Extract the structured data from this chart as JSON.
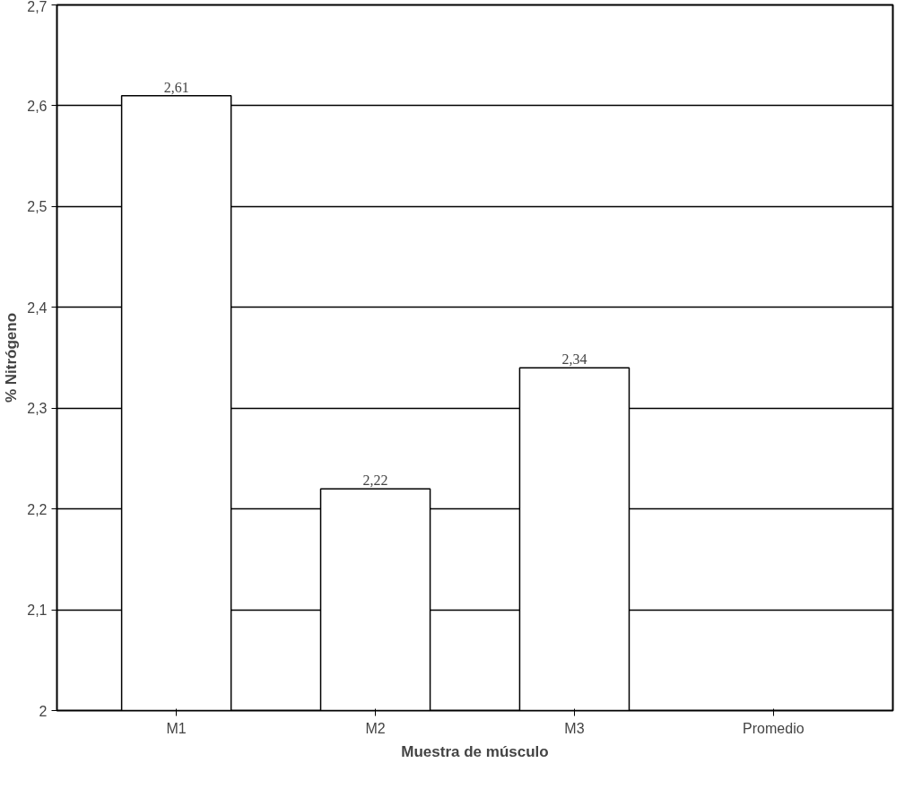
{
  "chart_data": {
    "type": "bar",
    "xlabel": "Muestra de músculo",
    "ylabel": "% Nitrógeno",
    "categories": [
      "M1",
      "M2",
      "M3",
      "Promedio"
    ],
    "values": [
      2.61,
      2.22,
      2.34,
      null
    ],
    "value_labels": [
      "2,61",
      "2,22",
      "2,34",
      null
    ],
    "color": "#ffffff",
    "ylim": [
      2,
      2.7
    ],
    "yticks": [
      {
        "value": 2,
        "label": "2"
      },
      {
        "value": 2.1,
        "label": "2,1"
      },
      {
        "value": 2.2,
        "label": "2,2"
      },
      {
        "value": 2.3,
        "label": "2,3"
      },
      {
        "value": 2.4,
        "label": "2,4"
      },
      {
        "value": 2.5,
        "label": "2,5"
      },
      {
        "value": 2.6,
        "label": "2,6"
      },
      {
        "value": 2.7,
        "label": "2,7"
      }
    ],
    "grid": "y"
  }
}
